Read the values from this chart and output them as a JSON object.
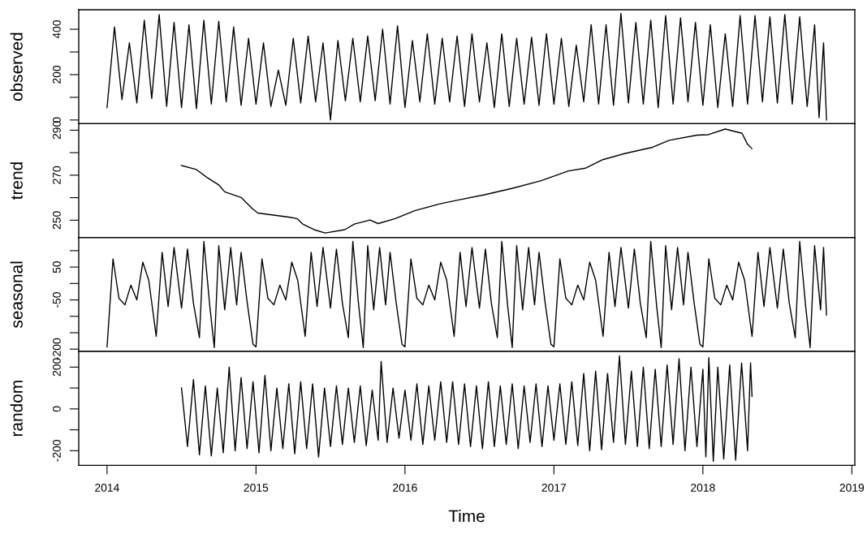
{
  "chart_data": [
    {
      "type": "line",
      "ylabel": "observed",
      "xlim": [
        2013.81,
        2019.02
      ],
      "ylim": [
        -16,
        486
      ],
      "yticks": [
        0,
        {
          "value": 100,
          "label": null
        },
        200,
        {
          "value": 300,
          "label": null
        },
        400
      ],
      "tick_labels": "y",
      "series": [
        {
          "color": "#000000",
          "x": [
            2014.0,
            2014.05,
            2014.1,
            2014.15,
            2014.2,
            2014.25,
            2014.3,
            2014.35,
            2014.4,
            2014.45,
            2014.5,
            2014.55,
            2014.6,
            2014.65,
            2014.7,
            2014.75,
            2014.8,
            2014.85,
            2014.9,
            2014.95,
            2015.0,
            2015.05,
            2015.1,
            2015.15,
            2015.2,
            2015.25,
            2015.3,
            2015.35,
            2015.4,
            2015.45,
            2015.5,
            2015.55,
            2015.6,
            2015.65,
            2015.7,
            2015.75,
            2015.8,
            2015.85,
            2015.9,
            2015.95,
            2016.0,
            2016.05,
            2016.1,
            2016.15,
            2016.2,
            2016.25,
            2016.3,
            2016.35,
            2016.4,
            2016.45,
            2016.5,
            2016.55,
            2016.6,
            2016.65,
            2016.7,
            2016.75,
            2016.8,
            2016.85,
            2016.9,
            2016.95,
            2017.0,
            2017.05,
            2017.1,
            2017.15,
            2017.2,
            2017.25,
            2017.3,
            2017.35,
            2017.4,
            2017.45,
            2017.5,
            2017.55,
            2017.6,
            2017.65,
            2017.7,
            2017.75,
            2017.8,
            2017.85,
            2017.9,
            2017.95,
            2018.0,
            2018.05,
            2018.1,
            2018.15,
            2018.2,
            2018.25,
            2018.3,
            2018.35,
            2018.4,
            2018.45,
            2018.5,
            2018.55,
            2018.6,
            2018.65,
            2018.7,
            2018.75,
            2018.78,
            2018.81,
            2018.83
          ],
          "values": [
            55,
            410,
            90,
            340,
            75,
            440,
            95,
            465,
            60,
            430,
            55,
            420,
            50,
            440,
            70,
            435,
            80,
            410,
            65,
            360,
            70,
            340,
            60,
            220,
            65,
            360,
            75,
            370,
            80,
            340,
            0,
            350,
            85,
            360,
            80,
            370,
            85,
            400,
            70,
            415,
            55,
            350,
            80,
            380,
            70,
            360,
            80,
            370,
            60,
            380,
            80,
            340,
            55,
            380,
            60,
            360,
            70,
            365,
            65,
            380,
            70,
            360,
            60,
            330,
            80,
            420,
            70,
            420,
            65,
            470,
            75,
            430,
            70,
            440,
            55,
            460,
            70,
            450,
            80,
            430,
            65,
            420,
            55,
            380,
            60,
            460,
            70,
            460,
            80,
            455,
            75,
            465,
            70,
            455,
            60,
            420,
            10,
            340,
            0
          ]
        }
      ]
    },
    {
      "type": "line",
      "ylabel": "trend",
      "xlim": [
        2013.81,
        2019.02
      ],
      "ylim": [
        242.3,
        292.9
      ],
      "yticks": [
        250,
        {
          "value": 260,
          "label": null
        },
        270,
        {
          "value": 280,
          "label": null
        },
        290
      ],
      "tick_labels": "y",
      "series": [
        {
          "color": "#000000",
          "x": [
            2014.5,
            2014.6,
            2014.675,
            2014.75,
            2014.79,
            2014.9,
            2014.976,
            2015.013,
            2015.126,
            2015.22,
            2015.276,
            2015.314,
            2015.39,
            2015.464,
            2015.596,
            2015.66,
            2015.765,
            2015.82,
            2015.934,
            2016.065,
            2016.23,
            2016.346,
            2016.534,
            2016.722,
            2016.91,
            2017.098,
            2017.21,
            2017.323,
            2017.474,
            2017.662,
            2017.774,
            2017.962,
            2018.037,
            2018.15,
            2018.263,
            2018.3,
            2018.329
          ],
          "values": [
            274.3,
            272.5,
            268.8,
            265.7,
            262.6,
            260.1,
            255.1,
            253.2,
            252.2,
            251.4,
            250.7,
            248.3,
            245.8,
            244.3,
            245.8,
            248.3,
            250.1,
            248.5,
            250.7,
            254.2,
            257.2,
            258.8,
            261.3,
            264.2,
            267.5,
            271.9,
            273.1,
            276.8,
            279.6,
            282.4,
            285.5,
            287.8,
            288.0,
            290.5,
            288.6,
            283.7,
            281.8
          ]
        }
      ]
    },
    {
      "type": "line",
      "ylabel": "seasonal",
      "xlim": [
        2013.81,
        2019.02
      ],
      "ylim": [
        -207,
        140
      ],
      "yticks": [
        {
          "value": -200,
          "label": "-200"
        },
        {
          "value": -150,
          "label": null
        },
        {
          "value": -100,
          "label": null
        },
        {
          "value": -50,
          "label": "-50"
        },
        {
          "value": 0,
          "label": null
        },
        50,
        {
          "value": 100,
          "label": null
        }
      ],
      "tick_labels": "y",
      "series": [
        {
          "color": "#000000",
          "x": [
            2014.0,
            2014.04,
            2014.08,
            2014.12,
            2014.16,
            2014.2,
            2014.24,
            2014.28,
            2014.33,
            2014.37,
            2014.41,
            2014.45,
            2014.5,
            2014.54,
            2014.58,
            2014.62,
            2014.65,
            2014.69,
            2014.72,
            2014.75,
            2014.79,
            2014.83,
            2014.87,
            2014.9,
            2014.94,
            2014.98,
            2015.0,
            2015.04,
            2015.08,
            2015.12,
            2015.16,
            2015.2,
            2015.24,
            2015.28,
            2015.33,
            2015.37,
            2015.41,
            2015.45,
            2015.5,
            2015.54,
            2015.58,
            2015.62,
            2015.65,
            2015.69,
            2015.72,
            2015.75,
            2015.79,
            2015.83,
            2015.87,
            2015.9,
            2015.94,
            2015.98,
            2016.0,
            2016.04,
            2016.08,
            2016.12,
            2016.16,
            2016.2,
            2016.24,
            2016.28,
            2016.33,
            2016.37,
            2016.41,
            2016.45,
            2016.5,
            2016.54,
            2016.58,
            2016.62,
            2016.65,
            2016.69,
            2016.72,
            2016.75,
            2016.79,
            2016.83,
            2016.87,
            2016.9,
            2016.94,
            2016.98,
            2017.0,
            2017.04,
            2017.08,
            2017.12,
            2017.16,
            2017.2,
            2017.24,
            2017.28,
            2017.33,
            2017.37,
            2017.41,
            2017.45,
            2017.5,
            2017.54,
            2017.58,
            2017.62,
            2017.65,
            2017.69,
            2017.72,
            2017.75,
            2017.79,
            2017.83,
            2017.87,
            2017.9,
            2017.94,
            2017.98,
            2018.0,
            2018.04,
            2018.08,
            2018.12,
            2018.16,
            2018.2,
            2018.24,
            2018.28,
            2018.33,
            2018.37,
            2018.41,
            2018.45,
            2018.5,
            2018.54,
            2018.58,
            2018.62,
            2018.65,
            2018.69,
            2018.72,
            2018.75,
            2018.79,
            2018.81,
            2018.83
          ],
          "values": [
            -193,
            75,
            -45,
            -65,
            -5,
            -50,
            65,
            10,
            -161,
            95,
            -70,
            110,
            -75,
            105,
            -60,
            -165,
            128,
            -70,
            -195,
            115,
            -80,
            110,
            -65,
            95,
            -55,
            -185,
            -193,
            75,
            -45,
            -65,
            -5,
            -50,
            65,
            10,
            -161,
            95,
            -70,
            110,
            -75,
            105,
            -60,
            -165,
            128,
            -70,
            -195,
            115,
            -80,
            110,
            -65,
            95,
            -55,
            -185,
            -193,
            75,
            -45,
            -65,
            -5,
            -50,
            65,
            10,
            -161,
            95,
            -70,
            110,
            -75,
            105,
            -60,
            -165,
            128,
            -70,
            -195,
            115,
            -80,
            110,
            -65,
            95,
            -55,
            -185,
            -193,
            75,
            -45,
            -65,
            -5,
            -50,
            65,
            10,
            -161,
            95,
            -70,
            110,
            -75,
            105,
            -60,
            -165,
            128,
            -70,
            -195,
            115,
            -80,
            110,
            -65,
            95,
            -55,
            -185,
            -193,
            75,
            -45,
            -65,
            -5,
            -50,
            65,
            10,
            -161,
            95,
            -70,
            110,
            -75,
            105,
            -60,
            -165,
            128,
            -70,
            -195,
            115,
            -80,
            110,
            -96
          ]
        }
      ]
    },
    {
      "type": "line",
      "ylabel": "random",
      "xlabel": "Time",
      "xlim": [
        2013.81,
        2019.02
      ],
      "ylim": [
        -270,
        275
      ],
      "xticks": [
        2014,
        2015,
        2016,
        2017,
        2018,
        2019
      ],
      "yticks": [
        {
          "value": -200,
          "label": "-200"
        },
        {
          "value": -100,
          "label": null
        },
        0,
        {
          "value": 100,
          "label": null
        },
        200
      ],
      "series": [
        {
          "color": "#000000",
          "x": [
            2014.5,
            2014.54,
            2014.58,
            2014.62,
            2014.66,
            2014.7,
            2014.74,
            2014.78,
            2014.82,
            2014.86,
            2014.9,
            2014.94,
            2014.98,
            2015.02,
            2015.06,
            2015.1,
            2015.14,
            2015.18,
            2015.22,
            2015.26,
            2015.3,
            2015.34,
            2015.38,
            2015.42,
            2015.46,
            2015.5,
            2015.54,
            2015.58,
            2015.62,
            2015.66,
            2015.7,
            2015.74,
            2015.78,
            2015.82,
            2015.84,
            2015.88,
            2015.92,
            2015.96,
            2016.0,
            2016.04,
            2016.08,
            2016.12,
            2016.16,
            2016.2,
            2016.24,
            2016.28,
            2016.32,
            2016.36,
            2016.4,
            2016.44,
            2016.48,
            2016.52,
            2016.56,
            2016.6,
            2016.64,
            2016.68,
            2016.72,
            2016.76,
            2016.8,
            2016.84,
            2016.88,
            2016.92,
            2016.96,
            2017.0,
            2017.04,
            2017.08,
            2017.12,
            2017.16,
            2017.2,
            2017.24,
            2017.28,
            2017.32,
            2017.36,
            2017.4,
            2017.44,
            2017.48,
            2017.52,
            2017.56,
            2017.6,
            2017.64,
            2017.68,
            2017.72,
            2017.76,
            2017.8,
            2017.84,
            2017.88,
            2017.92,
            2017.96,
            2018.0,
            2018.02,
            2018.04,
            2018.07,
            2018.1,
            2018.14,
            2018.18,
            2018.22,
            2018.26,
            2018.3,
            2018.32,
            2018.33
          ],
          "values": [
            100,
            -180,
            140,
            -220,
            110,
            -225,
            100,
            -210,
            200,
            -200,
            150,
            -190,
            130,
            -210,
            160,
            -200,
            100,
            -190,
            120,
            -215,
            130,
            -190,
            120,
            -230,
            100,
            -180,
            110,
            -170,
            100,
            -160,
            110,
            -175,
            90,
            -150,
            227,
            -160,
            100,
            -140,
            90,
            -150,
            120,
            -170,
            110,
            -150,
            130,
            -160,
            130,
            -170,
            120,
            -180,
            110,
            -190,
            130,
            -180,
            110,
            -170,
            120,
            -190,
            110,
            -160,
            120,
            -180,
            110,
            -150,
            120,
            -170,
            130,
            -175,
            170,
            -200,
            180,
            -195,
            170,
            -160,
            254,
            -170,
            180,
            -180,
            200,
            -190,
            190,
            -180,
            210,
            -170,
            240,
            -200,
            200,
            -180,
            190,
            -230,
            245,
            -251,
            200,
            -240,
            210,
            -245,
            220,
            -200,
            220,
            60
          ]
        }
      ]
    }
  ]
}
